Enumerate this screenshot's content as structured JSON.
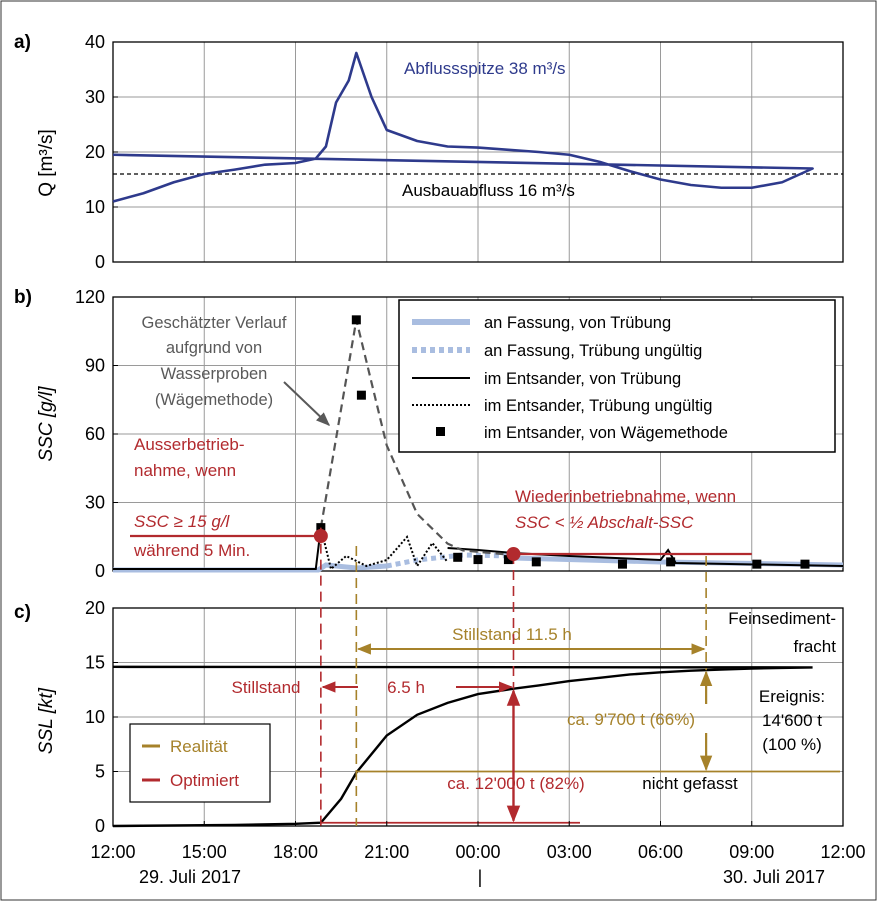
{
  "chart_data": [
    {
      "panel": "a)",
      "type": "line",
      "ylabel": "Q [m³/s]",
      "ylim": [
        0,
        40
      ],
      "yticks": [
        0,
        10,
        20,
        30,
        40
      ],
      "xlim_hours_since_12_00_29_juli_2017": [
        0,
        24
      ],
      "grid": true,
      "series": [
        {
          "color": "#2e3a8c",
          "x": [
            "12:00",
            "13:00",
            "14:00",
            "15:00",
            "16:00",
            "17:00",
            "18:00",
            "18:40",
            "19:00",
            "19:20",
            "19:45",
            "20:00",
            "20:30",
            "21:00",
            "22:00",
            "23:00",
            "00:00",
            "01:00",
            "02:00",
            "03:00",
            "04:00",
            "05:00",
            "06:00",
            "07:00",
            "08:00",
            "09:00",
            "10:00",
            "11:00",
            "12:00"
          ],
          "y": [
            11,
            12.5,
            14.5,
            16,
            16.8,
            17.7,
            18,
            18.8,
            21,
            29,
            33,
            38,
            30,
            24,
            22,
            21,
            20.8,
            20.4,
            20,
            19.5,
            18.2,
            16.5,
            15,
            14,
            13.5,
            13.5,
            14.5,
            17,
            19.5
          ]
        }
      ],
      "reference_line": {
        "value": 16,
        "style": "dashed",
        "label": "Ausbauabfluss 16 m³/s"
      },
      "annotations": [
        "Abflussspitze 38 m³/s"
      ]
    },
    {
      "panel": "b)",
      "type": "line",
      "ylabel": "SSC [g/l]",
      "ylim": [
        0,
        120
      ],
      "yticks": [
        0,
        30,
        60,
        90,
        120
      ],
      "grid": true,
      "legend_position": "top-right",
      "legend": [
        {
          "label": "an Fassung, von Trübung",
          "style": "thick-light-line",
          "color": "#a9bde0"
        },
        {
          "label": "an Fassung, Trübung ungültig",
          "style": "thick-light-dotted",
          "color": "#a9bde0"
        },
        {
          "label": "im Entsander, von Trübung",
          "style": "solid",
          "color": "#000000"
        },
        {
          "label": "im Entsander, Trübung ungültig",
          "style": "dotted",
          "color": "#000000"
        },
        {
          "label": "im Entsander, von Wägemethode",
          "style": "square-marker",
          "color": "#000000"
        }
      ],
      "series": [
        {
          "name": "im Entsander, von Wägemethode",
          "type": "scatter",
          "x": [
            "18:50",
            "20:00",
            "20:10",
            "23:20",
            "00:00",
            "01:00",
            "01:55",
            "04:45",
            "06:20",
            "09:10",
            "10:45"
          ],
          "y": [
            19,
            110,
            77,
            6,
            5,
            5,
            4,
            3,
            4,
            3,
            3
          ]
        },
        {
          "name": "Geschätzter Verlauf",
          "type": "dashed-line",
          "color": "#555555",
          "x": [
            "18:50",
            "20:00",
            "21:00",
            "22:00",
            "23:00",
            "23:30",
            "01:10"
          ],
          "y": [
            19,
            110,
            55,
            25,
            12,
            9,
            7
          ]
        }
      ],
      "annotations": [
        {
          "text": [
            "Geschätzter Verlauf",
            "aufgrund von",
            "Wasserproben",
            "(Wägemethode)"
          ],
          "color": "#595959"
        },
        {
          "text": [
            "Ausserbetrieb-",
            "nahme, wenn",
            "SSC ≥ 15 g/l",
            "während 5 Min."
          ],
          "color": "#b22a2e"
        },
        {
          "text": [
            "Wiederinbetriebnahme, wenn",
            "SSC < ½ Abschalt-SSC"
          ],
          "color": "#b22a2e"
        }
      ]
    },
    {
      "panel": "c)",
      "type": "line",
      "ylabel": "SSL [kt]",
      "ylim": [
        0,
        20
      ],
      "yticks": [
        0,
        5,
        10,
        15,
        20
      ],
      "grid": true,
      "series": [
        {
          "color": "#000000",
          "x": [
            "12:00",
            "16:00",
            "18:00",
            "18:50",
            "19:30",
            "20:00",
            "21:00",
            "22:00",
            "23:00",
            "00:00",
            "01:10",
            "02:00",
            "03:00",
            "04:00",
            "05:00",
            "06:00",
            "07:00",
            "08:00",
            "09:00",
            "10:00",
            "11:00",
            "12:00"
          ],
          "y": [
            0,
            0.1,
            0.2,
            0.3,
            2.5,
            4.9,
            8.3,
            10.2,
            11.3,
            12.1,
            12.6,
            12.9,
            13.3,
            13.6,
            13.9,
            14.1,
            14.25,
            14.35,
            14.45,
            14.5,
            14.55,
            14.6
          ]
        }
      ],
      "legend": [
        {
          "label": "Realität",
          "color": "#a6822a"
        },
        {
          "label": "Optimiert",
          "color": "#b22a2e"
        }
      ],
      "annotations": [
        "Stillstand 11.5 h",
        "Stillstand",
        "6.5 h",
        "Feinsediment-",
        "fracht",
        "Ereignis:",
        "14'600 t",
        "(100 %)",
        "ca. 9'700 t (66%)",
        "ca. 12'000 t (82%)",
        "nicht gefasst"
      ]
    }
  ],
  "x_axis": {
    "ticks": [
      "12:00",
      "15:00",
      "18:00",
      "21:00",
      "00:00",
      "03:00",
      "06:00",
      "09:00",
      "12:00"
    ],
    "dates": [
      "29. Juli 2017",
      "30. Juli 2017"
    ],
    "separator": "|"
  },
  "colors": {
    "discharge": "#2e3a8c",
    "realitaet": "#a6822a",
    "optimiert": "#b22a2e",
    "fassung": "#a9bde0",
    "estimate": "#555555",
    "grid": "#9a9a9a"
  }
}
